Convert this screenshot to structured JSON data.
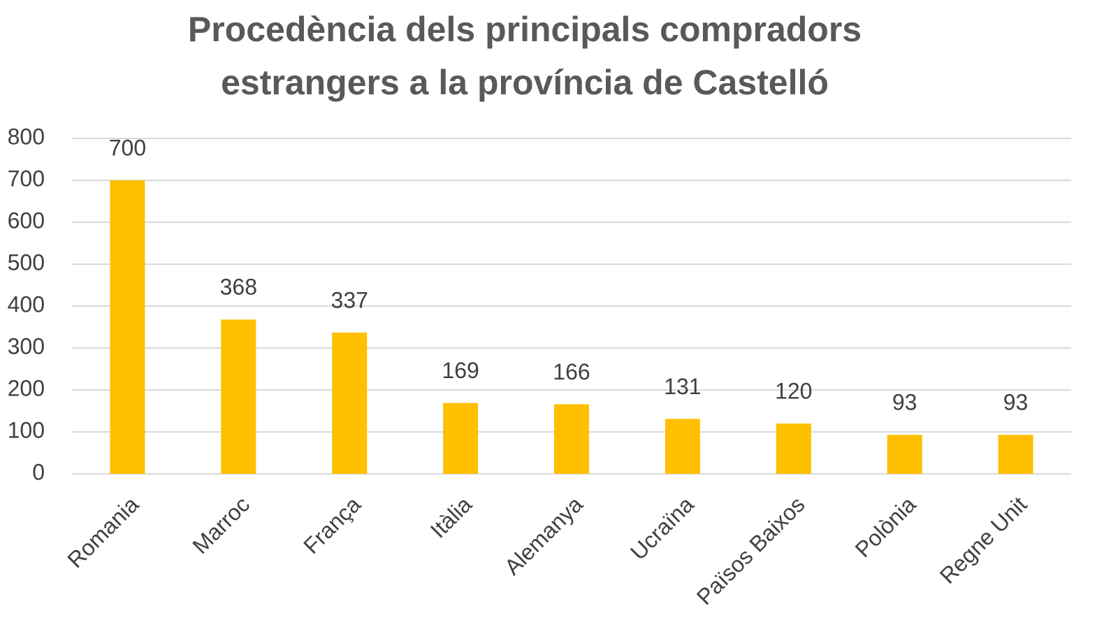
{
  "chart_data": {
    "type": "bar",
    "title": "Procedència dels principals compradors estrangers a la província de Castelló",
    "categories": [
      "Romania",
      "Marroc",
      "França",
      "Itàlia",
      "Alemanya",
      "Ucraïna",
      "Països Baixos",
      "Polònia",
      "Regne Unit"
    ],
    "values": [
      700,
      368,
      337,
      169,
      166,
      131,
      120,
      93,
      93
    ],
    "color": "#ffc000",
    "ylim": [
      0,
      800
    ],
    "yticks": [
      0,
      100,
      200,
      300,
      400,
      500,
      600,
      700,
      800
    ],
    "grid": true
  }
}
